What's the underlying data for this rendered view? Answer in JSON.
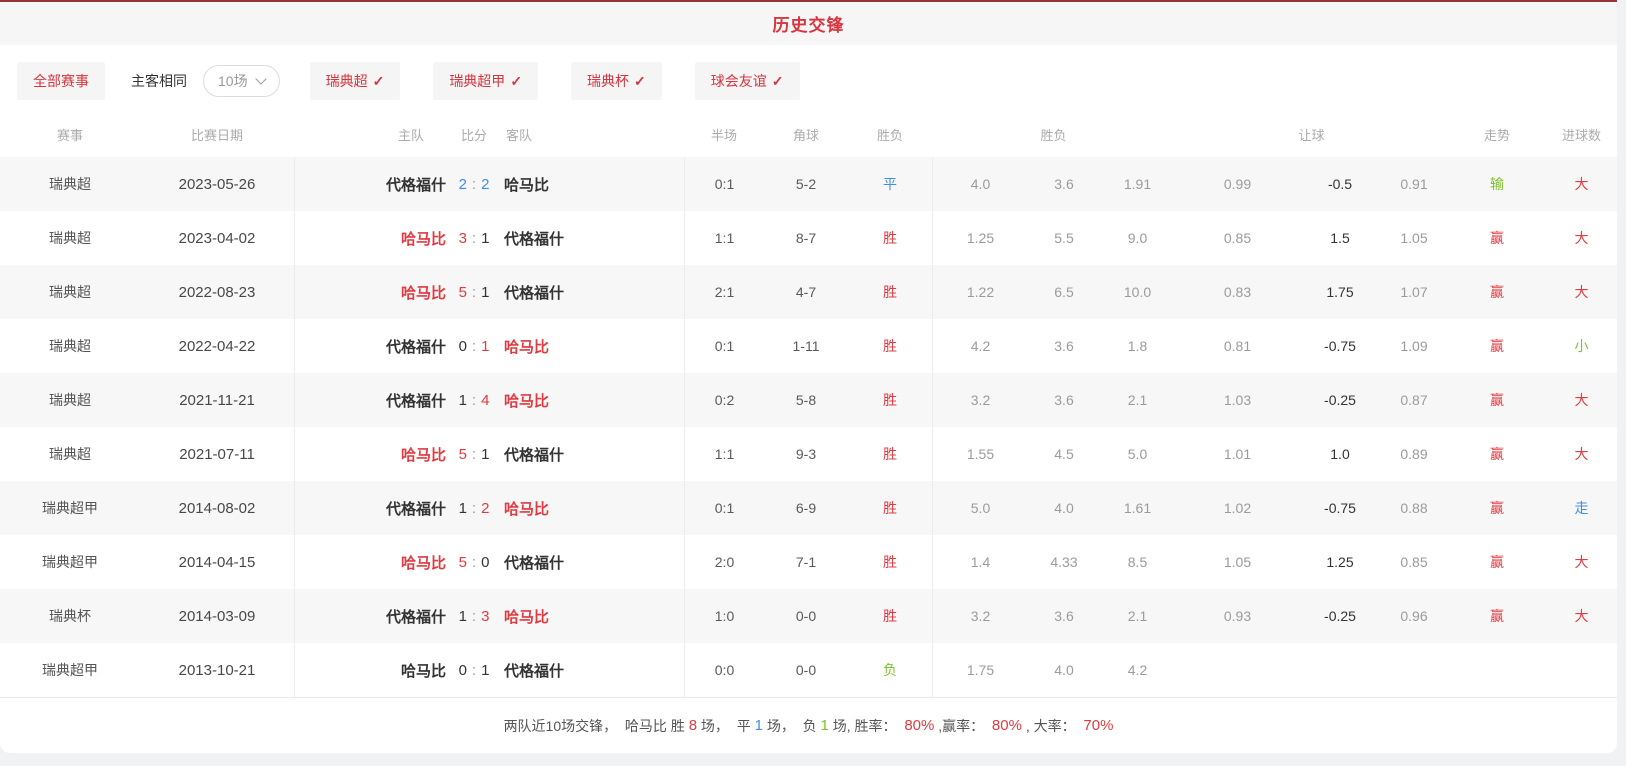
{
  "title": "历史交锋",
  "colors": {
    "red": "#e03b41",
    "blue": "#3f8fe5",
    "green": "#7dc32b"
  },
  "filters": {
    "all_label": "全部赛事",
    "same_venue_label": "主客相同",
    "count_select": {
      "value": "10场"
    },
    "check": "✓",
    "leagues": [
      "瑞典超",
      "瑞典超甲",
      "瑞典杯",
      "球会友谊"
    ]
  },
  "table": {
    "score_separator": ":",
    "headers": {
      "event": "赛事",
      "date": "比赛日期",
      "home": "主队",
      "score": "比分",
      "away": "客队",
      "half": "半场",
      "corners": "角球",
      "result": "胜负",
      "win_odds": "胜负",
      "handicap": "让球",
      "trend": "走势",
      "goals": "进球数"
    },
    "rows": [
      {
        "league": "瑞典超",
        "date": "2023-05-26",
        "home": "代格福什",
        "home_color": "dark",
        "home_score": "2",
        "home_score_color": "blue",
        "away_score": "2",
        "away_score_color": "blue",
        "away": "哈马比",
        "away_color": "dark",
        "half": "0:1",
        "corners": "5-2",
        "result": "平",
        "result_color": "blue",
        "win_odds": [
          "4.0",
          "3.6",
          "1.91"
        ],
        "handicap_odds": [
          "0.99",
          "-0.5",
          "0.91"
        ],
        "trend": "输",
        "trend_color": "green",
        "goals": "大",
        "goals_color": "red"
      },
      {
        "league": "瑞典超",
        "date": "2023-04-02",
        "home": "哈马比",
        "home_color": "red",
        "home_score": "3",
        "home_score_color": "red",
        "away_score": "1",
        "away_score_color": "dark",
        "away": "代格福什",
        "away_color": "dark",
        "half": "1:1",
        "corners": "8-7",
        "result": "胜",
        "result_color": "red",
        "win_odds": [
          "1.25",
          "5.5",
          "9.0"
        ],
        "handicap_odds": [
          "0.85",
          "1.5",
          "1.05"
        ],
        "trend": "赢",
        "trend_color": "red",
        "goals": "大",
        "goals_color": "red"
      },
      {
        "league": "瑞典超",
        "date": "2022-08-23",
        "home": "哈马比",
        "home_color": "red",
        "home_score": "5",
        "home_score_color": "red",
        "away_score": "1",
        "away_score_color": "dark",
        "away": "代格福什",
        "away_color": "dark",
        "half": "2:1",
        "corners": "4-7",
        "result": "胜",
        "result_color": "red",
        "win_odds": [
          "1.22",
          "6.5",
          "10.0"
        ],
        "handicap_odds": [
          "0.83",
          "1.75",
          "1.07"
        ],
        "trend": "赢",
        "trend_color": "red",
        "goals": "大",
        "goals_color": "red"
      },
      {
        "league": "瑞典超",
        "date": "2022-04-22",
        "home": "代格福什",
        "home_color": "dark",
        "home_score": "0",
        "home_score_color": "dark",
        "away_score": "1",
        "away_score_color": "red",
        "away": "哈马比",
        "away_color": "red",
        "half": "0:1",
        "corners": "1-11",
        "result": "胜",
        "result_color": "red",
        "win_odds": [
          "4.2",
          "3.6",
          "1.8"
        ],
        "handicap_odds": [
          "0.81",
          "-0.75",
          "1.09"
        ],
        "trend": "赢",
        "trend_color": "red",
        "goals": "小",
        "goals_color": "green"
      },
      {
        "league": "瑞典超",
        "date": "2021-11-21",
        "home": "代格福什",
        "home_color": "dark",
        "home_score": "1",
        "home_score_color": "dark",
        "away_score": "4",
        "away_score_color": "red",
        "away": "哈马比",
        "away_color": "red",
        "half": "0:2",
        "corners": "5-8",
        "result": "胜",
        "result_color": "red",
        "win_odds": [
          "3.2",
          "3.6",
          "2.1"
        ],
        "handicap_odds": [
          "1.03",
          "-0.25",
          "0.87"
        ],
        "trend": "赢",
        "trend_color": "red",
        "goals": "大",
        "goals_color": "red"
      },
      {
        "league": "瑞典超",
        "date": "2021-07-11",
        "home": "哈马比",
        "home_color": "red",
        "home_score": "5",
        "home_score_color": "red",
        "away_score": "1",
        "away_score_color": "dark",
        "away": "代格福什",
        "away_color": "dark",
        "half": "1:1",
        "corners": "9-3",
        "result": "胜",
        "result_color": "red",
        "win_odds": [
          "1.55",
          "4.5",
          "5.0"
        ],
        "handicap_odds": [
          "1.01",
          "1.0",
          "0.89"
        ],
        "trend": "赢",
        "trend_color": "red",
        "goals": "大",
        "goals_color": "red"
      },
      {
        "league": "瑞典超甲",
        "date": "2014-08-02",
        "home": "代格福什",
        "home_color": "dark",
        "home_score": "1",
        "home_score_color": "dark",
        "away_score": "2",
        "away_score_color": "red",
        "away": "哈马比",
        "away_color": "red",
        "half": "0:1",
        "corners": "6-9",
        "result": "胜",
        "result_color": "red",
        "win_odds": [
          "5.0",
          "4.0",
          "1.61"
        ],
        "handicap_odds": [
          "1.02",
          "-0.75",
          "0.88"
        ],
        "trend": "赢",
        "trend_color": "red",
        "goals": "走",
        "goals_color": "blue"
      },
      {
        "league": "瑞典超甲",
        "date": "2014-04-15",
        "home": "哈马比",
        "home_color": "red",
        "home_score": "5",
        "home_score_color": "red",
        "away_score": "0",
        "away_score_color": "dark",
        "away": "代格福什",
        "away_color": "dark",
        "half": "2:0",
        "corners": "7-1",
        "result": "胜",
        "result_color": "red",
        "win_odds": [
          "1.4",
          "4.33",
          "8.5"
        ],
        "handicap_odds": [
          "1.05",
          "1.25",
          "0.85"
        ],
        "trend": "赢",
        "trend_color": "red",
        "goals": "大",
        "goals_color": "red"
      },
      {
        "league": "瑞典杯",
        "date": "2014-03-09",
        "home": "代格福什",
        "home_color": "dark",
        "home_score": "1",
        "home_score_color": "dark",
        "away_score": "3",
        "away_score_color": "red",
        "away": "哈马比",
        "away_color": "red",
        "half": "1:0",
        "corners": "0-0",
        "result": "胜",
        "result_color": "red",
        "win_odds": [
          "3.2",
          "3.6",
          "2.1"
        ],
        "handicap_odds": [
          "0.93",
          "-0.25",
          "0.96"
        ],
        "trend": "赢",
        "trend_color": "red",
        "goals": "大",
        "goals_color": "red"
      },
      {
        "league": "瑞典超甲",
        "date": "2013-10-21",
        "home": "哈马比",
        "home_color": "dark",
        "home_score": "0",
        "home_score_color": "dark",
        "away_score": "1",
        "away_score_color": "dark",
        "away": "代格福什",
        "away_color": "dark",
        "half": "0:0",
        "corners": "0-0",
        "result": "负",
        "result_color": "green",
        "win_odds": [
          "1.75",
          "4.0",
          "4.2"
        ],
        "handicap_odds": [
          "",
          "",
          ""
        ],
        "trend": "",
        "trend_color": "dark",
        "goals": "",
        "goals_color": "dark"
      }
    ]
  },
  "summary": {
    "segments": [
      {
        "text": "两队近10场交锋，  哈马比 胜 ",
        "color": "default"
      },
      {
        "text": "8",
        "color": "red"
      },
      {
        "text": " 场，  平 ",
        "color": "default"
      },
      {
        "text": "1",
        "color": "blue"
      },
      {
        "text": " 场，  负 ",
        "color": "default"
      },
      {
        "text": "1",
        "color": "green"
      },
      {
        "text": " 场, 胜率：  ",
        "color": "default"
      },
      {
        "text": "80%",
        "color": "red"
      },
      {
        "text": " ,赢率：  ",
        "color": "default"
      },
      {
        "text": "80%",
        "color": "red"
      },
      {
        "text": " , 大率：  ",
        "color": "default"
      },
      {
        "text": "70%",
        "color": "red"
      }
    ]
  }
}
